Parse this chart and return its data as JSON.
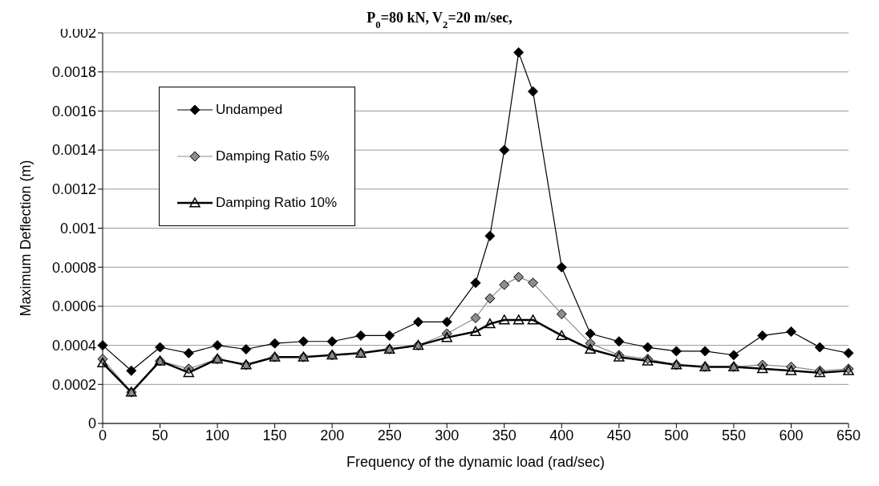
{
  "chart_data": {
    "type": "line",
    "title": "P$_{0}$=80 kN, V$_{2}$=20 m/sec,",
    "xlabel": "Frequency of the dynamic load  (rad/sec)",
    "ylabel": "Maximum Deflection (m)",
    "x": [
      0,
      25,
      50,
      75,
      100,
      125,
      150,
      175,
      200,
      225,
      250,
      275,
      300,
      325,
      337.5,
      350,
      362.5,
      375,
      400,
      425,
      450,
      475,
      500,
      525,
      550,
      575,
      600,
      625,
      650
    ],
    "series": [
      {
        "name": "Undamped",
        "color": "#000000",
        "marker": "diamond",
        "values": [
          0.0004,
          0.00027,
          0.00039,
          0.00036,
          0.0004,
          0.00038,
          0.00041,
          0.00042,
          0.00042,
          0.00045,
          0.00045,
          0.00052,
          0.00052,
          0.00072,
          0.00096,
          0.0014,
          0.0019,
          0.0017,
          0.0008,
          0.00046,
          0.00042,
          0.00039,
          0.00037,
          0.00037,
          0.00035,
          0.00045,
          0.00047,
          0.00039,
          0.00036
        ]
      },
      {
        "name": "Damping Ratio 5%",
        "color": "#8c8c8c",
        "marker": "diamond",
        "values": [
          0.00033,
          0.00016,
          0.00032,
          0.00028,
          0.00033,
          0.0003,
          0.00034,
          0.00034,
          0.00035,
          0.00036,
          0.00038,
          0.0004,
          0.00046,
          0.00054,
          0.00064,
          0.00071,
          0.00075,
          0.00072,
          0.00056,
          0.00041,
          0.00035,
          0.00033,
          0.0003,
          0.00029,
          0.00029,
          0.0003,
          0.00029,
          0.00027,
          0.00028
        ]
      },
      {
        "name": "Damping Ratio 10%",
        "color": "#000000",
        "marker": "triangle",
        "values": [
          0.00031,
          0.00016,
          0.00032,
          0.00026,
          0.00033,
          0.0003,
          0.00034,
          0.00034,
          0.00035,
          0.00036,
          0.00038,
          0.0004,
          0.00044,
          0.00047,
          0.00051,
          0.00053,
          0.00053,
          0.00053,
          0.00045,
          0.00038,
          0.00034,
          0.00032,
          0.0003,
          0.00029,
          0.00029,
          0.00028,
          0.00027,
          0.00026,
          0.00027
        ]
      }
    ],
    "xlim": [
      0,
      650
    ],
    "xticks": [
      0,
      50,
      100,
      150,
      200,
      250,
      300,
      350,
      400,
      450,
      500,
      550,
      600,
      650
    ],
    "ylim": [
      0,
      0.002
    ],
    "yticks": [
      0,
      0.0002,
      0.0004,
      0.0006,
      0.0008,
      0.001,
      0.0012,
      0.0014,
      0.0016,
      0.0018,
      0.002
    ],
    "grid": "y",
    "legend": "top left",
    "line_style": "solid"
  }
}
